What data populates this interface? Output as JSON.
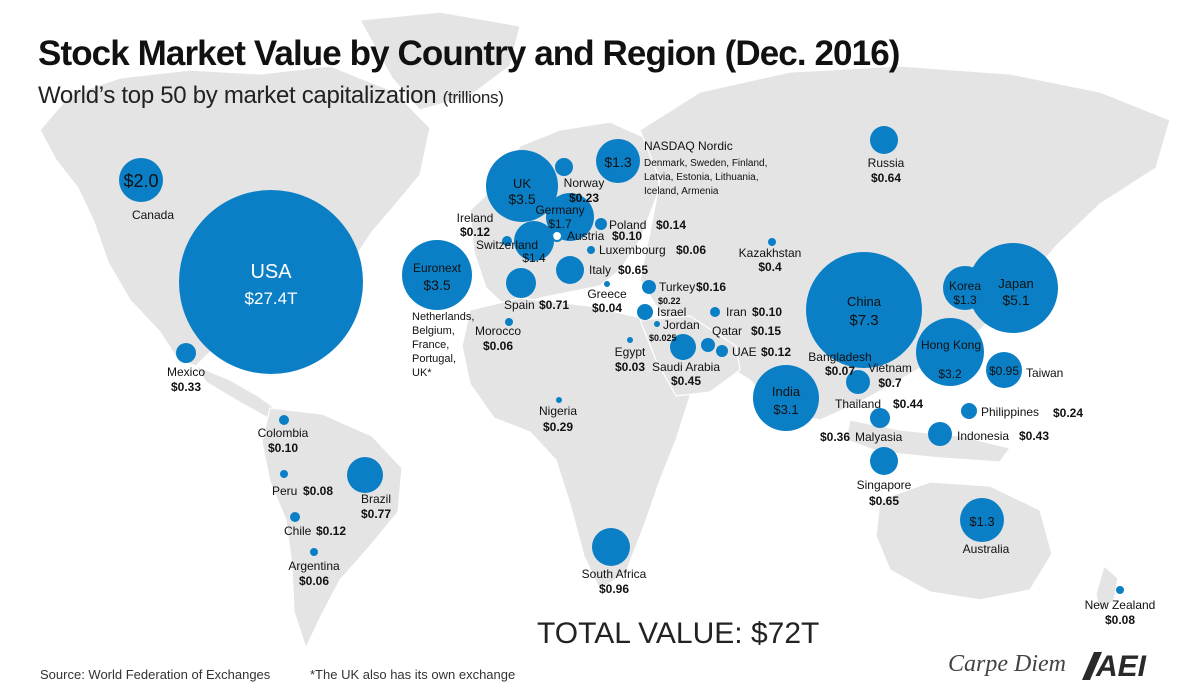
{
  "header": {
    "title": "Stock Market Value by Country and Region (Dec. 2016)",
    "subtitle": "World’s top 50 by market capitalization",
    "subtitle_unit": "(trillions)"
  },
  "footer": {
    "total": "TOTAL VALUE: $72T",
    "source": "Source: World Federation of Exchanges",
    "footnote": "*The UK also has its own exchange",
    "brand": "Carpe Diem",
    "logo_text": "AEI"
  },
  "colors": {
    "bubble": "#0a7fc6",
    "land": "#e4e4e4",
    "ocean": "#ffffff",
    "label": "#111111"
  },
  "markets": [
    {
      "id": "usa",
      "name": "USA",
      "value": "$27.4T",
      "trillions": 27.4
    },
    {
      "id": "canada",
      "name": "Canada",
      "value": "$2.0",
      "trillions": 2.0
    },
    {
      "id": "mexico",
      "name": "Mexico",
      "value": "$0.33",
      "trillions": 0.33
    },
    {
      "id": "colombia",
      "name": "Colombia",
      "value": "$0.10",
      "trillions": 0.1
    },
    {
      "id": "peru",
      "name": "Peru",
      "value": "$0.08",
      "trillions": 0.08
    },
    {
      "id": "brazil",
      "name": "Brazil",
      "value": "$0.77",
      "trillions": 0.77
    },
    {
      "id": "chile",
      "name": "Chile",
      "value": "$0.12",
      "trillions": 0.12
    },
    {
      "id": "argentina",
      "name": "Argentina",
      "value": "$0.06",
      "trillions": 0.06
    },
    {
      "id": "euronext",
      "name": "Euronext",
      "value": "$3.5",
      "trillions": 3.5,
      "note": [
        "Netherlands,",
        "Belgium,",
        "France,",
        "Portugal,",
        "UK*"
      ]
    },
    {
      "id": "uk",
      "name": "UK",
      "value": "$3.5",
      "trillions": 3.5
    },
    {
      "id": "ireland",
      "name": "Ireland",
      "value": "$0.12",
      "trillions": 0.12
    },
    {
      "id": "norway",
      "name": "Norway",
      "value": "$0.23",
      "trillions": 0.23
    },
    {
      "id": "nasdaq_nordic",
      "name": "NASDAQ Nordic",
      "value": "$1.3",
      "trillions": 1.3,
      "note": [
        "Denmark, Sweden, Finland,",
        "Latvia, Estonia, Lithuania,",
        "Iceland, Armenia"
      ]
    },
    {
      "id": "germany",
      "name": "Germany",
      "value": "$1.7",
      "trillions": 1.7
    },
    {
      "id": "poland",
      "name": "Poland",
      "value": "$0.14",
      "trillions": 0.14
    },
    {
      "id": "austria",
      "name": "Austria",
      "value": "$0.10",
      "trillions": 0.1
    },
    {
      "id": "switzerland",
      "name": "Switzerland",
      "value": "$1.4",
      "trillions": 1.4
    },
    {
      "id": "luxembourg",
      "name": "Luxembourg",
      "value": "$0.06",
      "trillions": 0.06
    },
    {
      "id": "italy",
      "name": "Italy",
      "value": "$0.65",
      "trillions": 0.65
    },
    {
      "id": "spain",
      "name": "Spain",
      "value": "$0.71",
      "trillions": 0.71
    },
    {
      "id": "greece",
      "name": "Greece",
      "value": "$0.04",
      "trillions": 0.04
    },
    {
      "id": "turkey",
      "name": "Turkey",
      "value": "$0.16",
      "trillions": 0.16
    },
    {
      "id": "israel",
      "name": "Israel",
      "value": "$0.22",
      "trillions": 0.22
    },
    {
      "id": "jordan",
      "name": "Jordan",
      "value": "$0.025",
      "trillions": 0.025
    },
    {
      "id": "iran",
      "name": "Iran",
      "value": "$0.10",
      "trillions": 0.1
    },
    {
      "id": "qatar",
      "name": "Qatar",
      "value": "$0.15",
      "trillions": 0.15
    },
    {
      "id": "uae",
      "name": "UAE",
      "value": "$0.12",
      "trillions": 0.12
    },
    {
      "id": "saudi",
      "name": "Saudi Arabia",
      "value": "$0.45",
      "trillions": 0.45
    },
    {
      "id": "egypt",
      "name": "Egypt",
      "value": "$0.03",
      "trillions": 0.03
    },
    {
      "id": "morocco",
      "name": "Morocco",
      "value": "$0.06",
      "trillions": 0.06
    },
    {
      "id": "nigeria",
      "name": "Nigeria",
      "value": "$0.29",
      "trillions": 0.29
    },
    {
      "id": "south_africa",
      "name": "South Africa",
      "value": "$0.96",
      "trillions": 0.96
    },
    {
      "id": "kazakhstan",
      "name": "Kazakhstan",
      "value": "$0.4",
      "trillions": 0.4
    },
    {
      "id": "russia",
      "name": "Russia",
      "value": "$0.64",
      "trillions": 0.64
    },
    {
      "id": "china",
      "name": "China",
      "value": "$7.3",
      "trillions": 7.3
    },
    {
      "id": "japan",
      "name": "Japan",
      "value": "$5.1",
      "trillions": 5.1
    },
    {
      "id": "korea",
      "name": "Korea",
      "value": "$1.3",
      "trillions": 1.3
    },
    {
      "id": "hong_kong",
      "name": "Hong Kong",
      "value": "$3.2",
      "trillions": 3.2
    },
    {
      "id": "taiwan",
      "name": "Taiwan",
      "value": "$0.95",
      "trillions": 0.95
    },
    {
      "id": "india",
      "name": "India",
      "value": "$3.1",
      "trillions": 3.1
    },
    {
      "id": "bangladesh",
      "name": "Bangladesh",
      "value": "$0.07",
      "trillions": 0.07
    },
    {
      "id": "vietnam",
      "name": "Vietnam",
      "value": "$0.7",
      "trillions": 0.7
    },
    {
      "id": "thailand",
      "name": "Thailand",
      "value": "$0.44",
      "trillions": 0.44
    },
    {
      "id": "malaysia",
      "name": "Malyasia",
      "value": "$0.36",
      "trillions": 0.36
    },
    {
      "id": "philippines",
      "name": "Philippines",
      "value": "$0.24",
      "trillions": 0.24
    },
    {
      "id": "indonesia",
      "name": "Indonesia",
      "value": "$0.43",
      "trillions": 0.43
    },
    {
      "id": "singapore",
      "name": "Singapore",
      "value": "$0.65",
      "trillions": 0.65
    },
    {
      "id": "australia",
      "name": "Australia",
      "value": "$1.3",
      "trillions": 1.3
    },
    {
      "id": "new_zealand",
      "name": "New Zealand",
      "value": "$0.08",
      "trillions": 0.08
    }
  ]
}
